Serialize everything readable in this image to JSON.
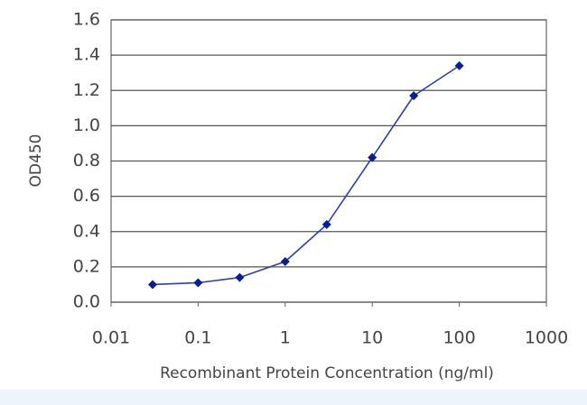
{
  "chart_data": {
    "type": "line",
    "xlabel": "Recombinant Protein Concentration (ng/ml)",
    "ylabel": "OD450",
    "x": [
      0.03,
      0.1,
      0.3,
      1,
      3,
      10,
      30,
      100
    ],
    "values": [
      0.1,
      0.11,
      0.14,
      0.23,
      0.44,
      0.82,
      1.17,
      1.34
    ],
    "color": "#2a3fb0",
    "marker_color": "#0a1f8f",
    "xscale": "log",
    "xlim": [
      0.01,
      1000
    ],
    "xticks": [
      0.01,
      0.1,
      1,
      10,
      100,
      1000
    ],
    "ylim": [
      0,
      1.6
    ],
    "yticks": [
      {
        "value": 0,
        "label": "0.0"
      },
      0.2,
      0.4,
      0.6,
      0.8,
      {
        "value": 1,
        "label": "1.0"
      },
      1.2,
      1.4,
      1.6
    ],
    "grid": true
  }
}
